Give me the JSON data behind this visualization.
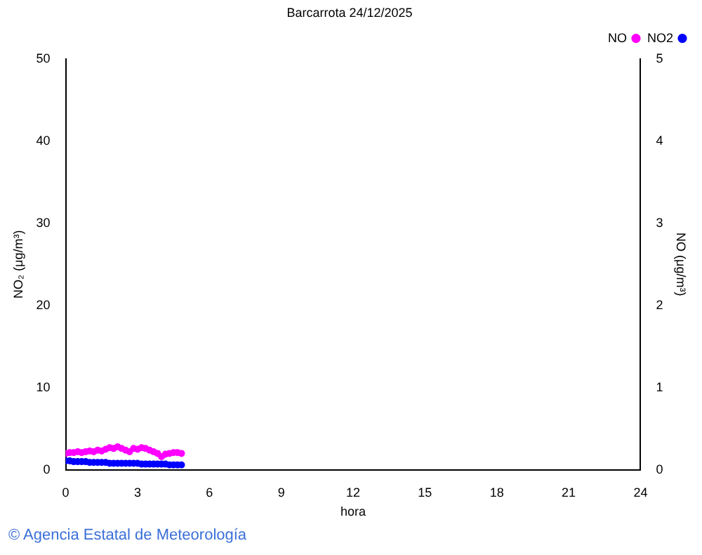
{
  "chart_data": {
    "type": "scatter",
    "title": "Barcarrota 24/12/2025",
    "xlabel": "hora",
    "ylabel": "NO₂ (μg/m³)",
    "y2label": "NO (μg/m³)",
    "x": [
      0,
      0.167,
      0.333,
      0.5,
      0.667,
      0.833,
      1,
      1.167,
      1.333,
      1.5,
      1.667,
      1.833,
      2,
      2.167,
      2.333,
      2.5,
      2.667,
      2.833,
      3,
      3.167,
      3.333,
      3.5,
      3.667,
      3.833,
      4,
      4.167,
      4.333,
      4.5,
      4.667,
      4.833
    ],
    "series": [
      {
        "name": "NO2",
        "color": "#0000ff",
        "values": [
          1.1,
          1.1,
          1.0,
          1.0,
          1.0,
          1.0,
          0.9,
          0.9,
          0.9,
          0.9,
          0.9,
          0.8,
          0.8,
          0.8,
          0.8,
          0.8,
          0.8,
          0.8,
          0.8,
          0.7,
          0.7,
          0.7,
          0.7,
          0.7,
          0.7,
          0.7,
          0.6,
          0.6,
          0.6,
          0.6
        ]
      },
      {
        "name": "NO",
        "color": "#ff00ff",
        "axis": "y2",
        "values": [
          0.2,
          0.21,
          0.21,
          0.22,
          0.21,
          0.22,
          0.23,
          0.22,
          0.24,
          0.23,
          0.25,
          0.27,
          0.26,
          0.28,
          0.26,
          0.24,
          0.22,
          0.26,
          0.25,
          0.27,
          0.26,
          0.24,
          0.22,
          0.2,
          0.16,
          0.19,
          0.2,
          0.21,
          0.21,
          0.2
        ]
      }
    ],
    "xlim": [
      0,
      24
    ],
    "xticks": [
      0,
      3,
      6,
      9,
      12,
      15,
      18,
      21,
      24
    ],
    "ylim": [
      0,
      50
    ],
    "yticks": [
      0,
      10,
      20,
      30,
      40,
      50
    ],
    "y2lim": [
      0,
      5
    ],
    "y2ticks": [
      0,
      1,
      2,
      3,
      4,
      5
    ],
    "marker": "circle",
    "grid": false,
    "legend": "top right",
    "annotations": [
      "© Agencia Estatal de Meteorología"
    ]
  }
}
